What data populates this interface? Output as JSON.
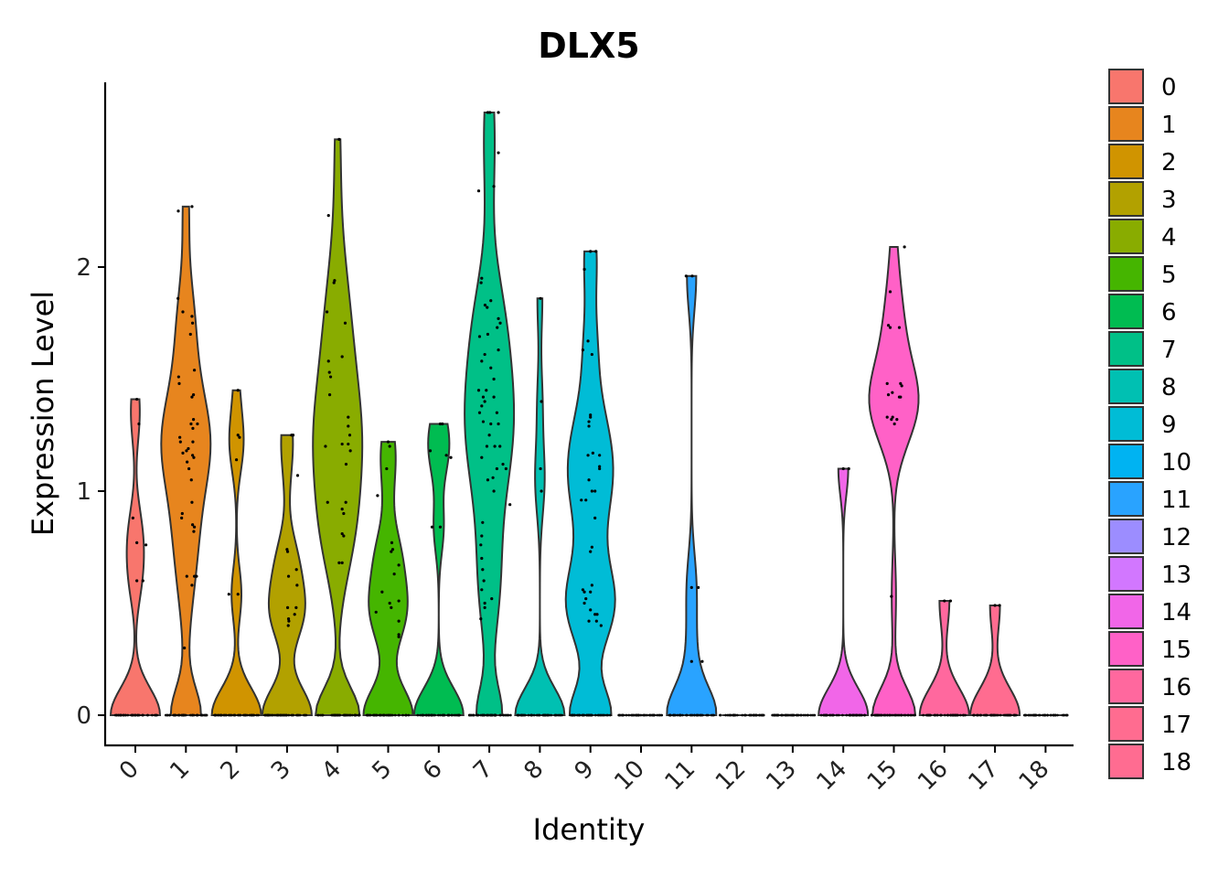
{
  "chart_data": {
    "type": "violin",
    "title": "DLX5",
    "xlabel": "Identity",
    "ylabel": "Expression Level",
    "ylim": [
      -0.13,
      2.82
    ],
    "yticks": [
      0,
      1,
      2
    ],
    "grid": false,
    "legend": "right",
    "categories": [
      "0",
      "1",
      "2",
      "3",
      "4",
      "5",
      "6",
      "7",
      "8",
      "9",
      "10",
      "11",
      "12",
      "13",
      "14",
      "15",
      "16",
      "17",
      "18"
    ],
    "colors": [
      "#F8766D",
      "#E7851E",
      "#D09400",
      "#B2A100",
      "#89AC00",
      "#45B500",
      "#00BC51",
      "#00C087",
      "#00C0B2",
      "#00BCD6",
      "#00B3F2",
      "#29A3FF",
      "#9C8DFF",
      "#D277FF",
      "#F166E8",
      "#FF61C7",
      "#FF689E",
      "#FF6C90",
      "#FF6C91"
    ],
    "series": [
      {
        "name": "0",
        "max": 1.41,
        "points": [
          [
            0.05,
            1.41
          ],
          [
            0.12,
            1.3
          ],
          [
            -0.08,
            0.88
          ],
          [
            0.35,
            0.76
          ],
          [
            0.25,
            0.6
          ],
          [
            0.05,
            0.6
          ],
          [
            0.05,
            0.77
          ]
        ]
      },
      {
        "name": "1",
        "max": 2.27,
        "points": [
          [
            -0.26,
            1.86
          ],
          [
            -0.24,
            1.51
          ],
          [
            -0.22,
            1.48
          ],
          [
            -0.2,
            1.24
          ],
          [
            -0.18,
            1.22
          ],
          [
            -0.25,
            2.25
          ],
          [
            0.2,
            2.27
          ],
          [
            -0.1,
            1.8
          ],
          [
            0.2,
            1.78
          ],
          [
            0.22,
            1.75
          ],
          [
            0.15,
            1.7
          ],
          [
            0.28,
            1.54
          ],
          [
            0.25,
            1.43
          ],
          [
            0.2,
            1.42
          ],
          [
            0.25,
            1.32
          ],
          [
            0.38,
            1.3
          ],
          [
            0.17,
            1.3
          ],
          [
            0.23,
            1.28
          ],
          [
            0.23,
            1.22
          ],
          [
            0.08,
            1.19
          ],
          [
            0.02,
            1.18
          ],
          [
            -0.1,
            1.17
          ],
          [
            0.22,
            1.16
          ],
          [
            0.26,
            1.15
          ],
          [
            0.04,
            1.13
          ],
          [
            0.1,
            1.1
          ],
          [
            0.18,
            1.05
          ],
          [
            0.2,
            0.95
          ],
          [
            -0.12,
            0.9
          ],
          [
            -0.14,
            0.88
          ],
          [
            0.22,
            0.85
          ],
          [
            0.28,
            0.84
          ],
          [
            0.26,
            0.82
          ],
          [
            0.03,
            0.62
          ],
          [
            0.35,
            0.62
          ],
          [
            0.28,
            0.62
          ],
          [
            0.2,
            0.58
          ],
          [
            -0.05,
            0.3
          ]
        ]
      },
      {
        "name": "2",
        "max": 1.45,
        "points": [
          [
            0.05,
            1.45
          ],
          [
            0.05,
            1.25
          ],
          [
            0.1,
            1.24
          ],
          [
            0.0,
            1.14
          ],
          [
            -0.25,
            0.54
          ],
          [
            0.05,
            0.54
          ]
        ]
      },
      {
        "name": "3",
        "max": 1.25,
        "points": [
          [
            0.15,
            1.25
          ],
          [
            0.2,
            1.25
          ],
          [
            0.35,
            1.07
          ],
          [
            0.0,
            0.74
          ],
          [
            0.02,
            0.73
          ],
          [
            0.31,
            0.65
          ],
          [
            0.05,
            0.62
          ],
          [
            0.33,
            0.58
          ],
          [
            0.3,
            0.48
          ],
          [
            0.02,
            0.48
          ],
          [
            0.25,
            0.45
          ],
          [
            0.05,
            0.43
          ],
          [
            0.06,
            0.42
          ],
          [
            0.04,
            0.4
          ]
        ]
      },
      {
        "name": "4",
        "max": 2.57,
        "points": [
          [
            0.05,
            2.57
          ],
          [
            -0.3,
            2.23
          ],
          [
            -0.12,
            1.93
          ],
          [
            -0.1,
            1.94
          ],
          [
            -0.35,
            1.8
          ],
          [
            0.25,
            1.75
          ],
          [
            0.15,
            1.6
          ],
          [
            -0.3,
            1.58
          ],
          [
            -0.27,
            1.53
          ],
          [
            -0.23,
            1.51
          ],
          [
            -0.26,
            1.43
          ],
          [
            0.35,
            1.33
          ],
          [
            0.35,
            1.29
          ],
          [
            0.4,
            1.25
          ],
          [
            0.15,
            1.21
          ],
          [
            0.35,
            1.21
          ],
          [
            -0.4,
            1.2
          ],
          [
            0.42,
            1.18
          ],
          [
            0.28,
            1.12
          ],
          [
            0.27,
            0.95
          ],
          [
            -0.33,
            0.95
          ],
          [
            0.2,
            0.9
          ],
          [
            0.15,
            0.92
          ],
          [
            0.15,
            0.81
          ],
          [
            0.2,
            0.8
          ],
          [
            0.15,
            0.68
          ],
          [
            0.05,
            0.68
          ]
        ]
      },
      {
        "name": "5",
        "max": 1.22,
        "points": [
          [
            0.0,
            1.22
          ],
          [
            0.05,
            1.2
          ],
          [
            -0.05,
            1.1
          ],
          [
            -0.35,
            0.98
          ],
          [
            0.12,
            0.77
          ],
          [
            0.15,
            0.74
          ],
          [
            0.1,
            0.73
          ],
          [
            0.35,
            0.67
          ],
          [
            0.2,
            0.63
          ],
          [
            -0.2,
            0.55
          ],
          [
            0.35,
            0.51
          ],
          [
            0.05,
            0.5
          ],
          [
            0.1,
            0.48
          ],
          [
            -0.4,
            0.46
          ],
          [
            0.35,
            0.42
          ],
          [
            0.35,
            0.36
          ],
          [
            0.35,
            0.35
          ]
        ]
      },
      {
        "name": "6",
        "max": 1.3,
        "points": [
          [
            0.05,
            1.3
          ],
          [
            0.12,
            1.3
          ],
          [
            -0.28,
            1.18
          ],
          [
            0.25,
            1.16
          ],
          [
            0.4,
            1.15
          ],
          [
            -0.22,
            0.84
          ],
          [
            0.05,
            0.84
          ]
        ]
      },
      {
        "name": "7",
        "max": 2.69,
        "points": [
          [
            -0.05,
            2.69
          ],
          [
            0.02,
            2.69
          ],
          [
            0.3,
            2.69
          ],
          [
            0.3,
            2.51
          ],
          [
            0.15,
            2.36
          ],
          [
            -0.35,
            2.34
          ],
          [
            -0.25,
            1.95
          ],
          [
            -0.27,
            1.93
          ],
          [
            0.05,
            1.85
          ],
          [
            -0.14,
            1.83
          ],
          [
            -0.07,
            1.82
          ],
          [
            0.3,
            1.77
          ],
          [
            0.36,
            1.75
          ],
          [
            0.26,
            1.73
          ],
          [
            -0.05,
            1.7
          ],
          [
            -0.32,
            1.69
          ],
          [
            0.3,
            1.63
          ],
          [
            -0.15,
            1.61
          ],
          [
            -0.25,
            1.58
          ],
          [
            0.05,
            1.55
          ],
          [
            0.15,
            1.5
          ],
          [
            -0.1,
            1.45
          ],
          [
            -0.35,
            1.45
          ],
          [
            -0.2,
            1.42
          ],
          [
            -0.15,
            1.4
          ],
          [
            0.15,
            1.42
          ],
          [
            -0.25,
            1.38
          ],
          [
            0.25,
            1.35
          ],
          [
            -0.32,
            1.35
          ],
          [
            -0.2,
            1.31
          ],
          [
            0.05,
            1.3
          ],
          [
            0.3,
            1.3
          ],
          [
            0.0,
            1.25
          ],
          [
            -0.08,
            1.2
          ],
          [
            0.18,
            1.2
          ],
          [
            0.35,
            1.2
          ],
          [
            -0.25,
            1.15
          ],
          [
            0.25,
            1.1
          ],
          [
            0.45,
            1.12
          ],
          [
            0.55,
            1.1
          ],
          [
            0.12,
            1.06
          ],
          [
            -0.05,
            1.05
          ],
          [
            0.15,
            1.0
          ],
          [
            0.68,
            0.94
          ],
          [
            -0.22,
            0.86
          ],
          [
            -0.25,
            0.8
          ],
          [
            -0.28,
            0.76
          ],
          [
            -0.25,
            0.7
          ],
          [
            -0.22,
            0.65
          ],
          [
            -0.18,
            0.6
          ],
          [
            -0.25,
            0.56
          ],
          [
            0.08,
            0.52
          ],
          [
            -0.15,
            0.5
          ],
          [
            -0.15,
            0.48
          ],
          [
            -0.28,
            0.43
          ],
          [
            0.2,
            0.0
          ]
        ]
      },
      {
        "name": "8",
        "max": 1.86,
        "points": [
          [
            0.02,
            1.86
          ],
          [
            0.05,
            1.4
          ],
          [
            0.02,
            1.1
          ],
          [
            0.05,
            1.0
          ]
        ]
      },
      {
        "name": "9",
        "max": 2.07,
        "points": [
          [
            0.0,
            2.07
          ],
          [
            0.18,
            2.07
          ],
          [
            -0.2,
            1.99
          ],
          [
            -0.08,
            1.67
          ],
          [
            -0.25,
            1.63
          ],
          [
            0.05,
            1.61
          ],
          [
            0.0,
            1.34
          ],
          [
            0.0,
            1.33
          ],
          [
            -0.05,
            1.31
          ],
          [
            -0.05,
            1.29
          ],
          [
            0.08,
            1.17
          ],
          [
            -0.08,
            1.16
          ],
          [
            0.3,
            1.16
          ],
          [
            0.3,
            1.11
          ],
          [
            0.3,
            1.1
          ],
          [
            -0.05,
            1.05
          ],
          [
            0.05,
            1.0
          ],
          [
            0.15,
            1.0
          ],
          [
            -0.15,
            0.96
          ],
          [
            -0.3,
            0.96
          ],
          [
            0.15,
            0.88
          ],
          [
            0.05,
            0.75
          ],
          [
            0.0,
            0.73
          ],
          [
            -0.25,
            0.56
          ],
          [
            -0.2,
            0.55
          ],
          [
            -0.15,
            0.52
          ],
          [
            0.05,
            0.58
          ],
          [
            0.0,
            0.55
          ],
          [
            -0.2,
            0.5
          ],
          [
            0.0,
            0.47
          ],
          [
            0.22,
            0.45
          ],
          [
            -0.05,
            0.42
          ],
          [
            0.2,
            0.42
          ],
          [
            0.35,
            0.4
          ],
          [
            0.15,
            0.45
          ]
        ]
      },
      {
        "name": "10",
        "max": 0,
        "points": []
      },
      {
        "name": "11",
        "max": 1.96,
        "points": [
          [
            -0.18,
            1.96
          ],
          [
            0.02,
            1.96
          ],
          [
            0.0,
            0.57
          ],
          [
            0.22,
            0.57
          ],
          [
            0.0,
            0.24
          ],
          [
            0.35,
            0.24
          ]
        ]
      },
      {
        "name": "12",
        "max": 0,
        "points": []
      },
      {
        "name": "13",
        "max": 0,
        "points": []
      },
      {
        "name": "14",
        "max": 1.1,
        "points": [
          [
            0.0,
            1.1
          ],
          [
            0.18,
            1.1
          ]
        ]
      },
      {
        "name": "15",
        "max": 2.09,
        "points": [
          [
            0.35,
            2.09
          ],
          [
            -0.12,
            1.89
          ],
          [
            0.18,
            1.73
          ],
          [
            -0.12,
            1.73
          ],
          [
            -0.18,
            1.74
          ],
          [
            -0.22,
            1.48
          ],
          [
            0.22,
            1.48
          ],
          [
            0.26,
            1.47
          ],
          [
            -0.05,
            1.44
          ],
          [
            -0.18,
            1.43
          ],
          [
            0.18,
            1.42
          ],
          [
            0.22,
            1.42
          ],
          [
            -0.22,
            1.33
          ],
          [
            -0.04,
            1.33
          ],
          [
            0.1,
            1.32
          ],
          [
            -0.08,
            1.32
          ],
          [
            0.02,
            1.3
          ],
          [
            -0.08,
            0.53
          ]
        ]
      },
      {
        "name": "16",
        "max": 0.51,
        "points": [
          [
            0.0,
            0.51
          ],
          [
            0.2,
            0.51
          ]
        ]
      },
      {
        "name": "17",
        "max": 0.49,
        "points": [
          [
            0.0,
            0.49
          ],
          [
            0.15,
            0.49
          ]
        ]
      },
      {
        "name": "18",
        "max": 0,
        "points": []
      }
    ]
  }
}
